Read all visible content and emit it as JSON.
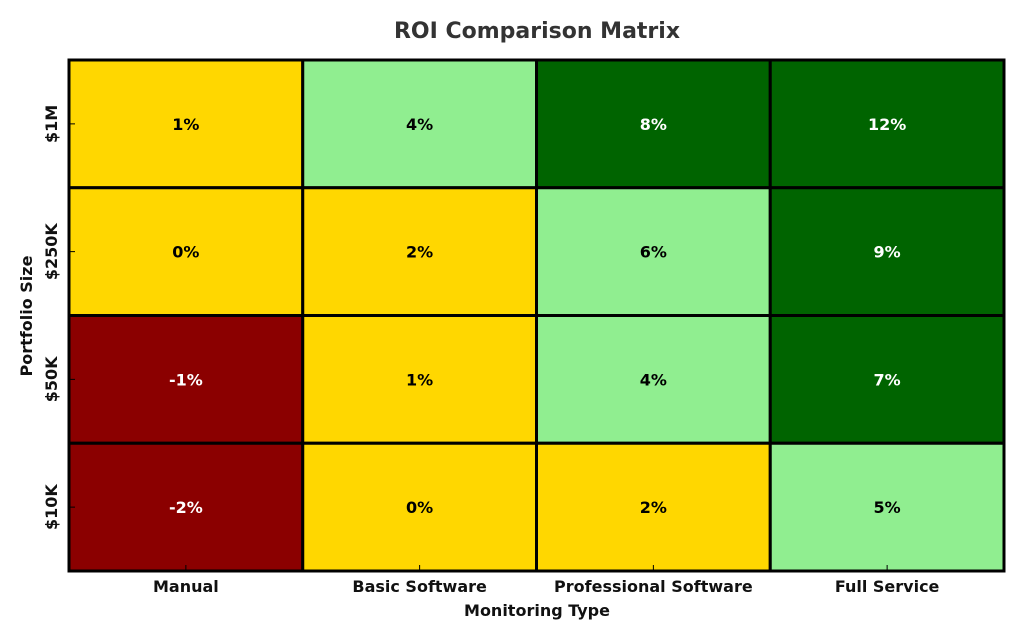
{
  "chart_data": {
    "type": "heatmap",
    "title": "ROI Comparison Matrix",
    "xlabel": "Monitoring Type",
    "ylabel": "Portfolio Size",
    "x_categories": [
      "Manual",
      "Basic Software",
      "Professional Software",
      "Full Service"
    ],
    "y_categories": [
      "$1M",
      "$250K",
      "$50K",
      "$10K"
    ],
    "values": [
      [
        1,
        4,
        8,
        12
      ],
      [
        0,
        2,
        6,
        9
      ],
      [
        -1,
        1,
        4,
        7
      ],
      [
        -2,
        0,
        2,
        5
      ]
    ],
    "value_labels": [
      [
        "1%",
        "4%",
        "8%",
        "12%"
      ],
      [
        "0%",
        "2%",
        "6%",
        "9%"
      ],
      [
        "-1%",
        "1%",
        "4%",
        "7%"
      ],
      [
        "-2%",
        "0%",
        "2%",
        "5%"
      ]
    ],
    "colors": {
      "dark_red": "#8b0000",
      "gold": "#ffd700",
      "light_green": "#90ee90",
      "dark_green": "#006400"
    },
    "color_thresholds": {
      "below_zero": "dark_red",
      "zero_to_three": "gold",
      "three_to_seven": "light_green",
      "seven_and_above": "dark_green"
    },
    "grid": false,
    "legend": "none"
  }
}
